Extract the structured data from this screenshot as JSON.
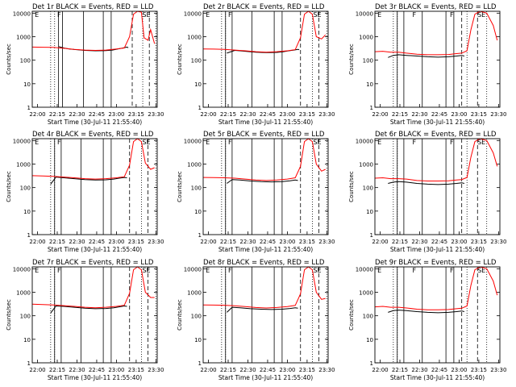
{
  "figure": {
    "panels": [
      {
        "title": "Det 1r BLACK = Events, RED = LLD",
        "xlabel": "Start Time (30-Jul-11 21:55:40)",
        "ylabel": "Counts/sec",
        "xtick_labels": [
          "22:00",
          "22:15",
          "22:30",
          "22:45",
          "23:00",
          "23:15",
          "23:30"
        ],
        "ytick_labels": [
          "1",
          "10",
          "100",
          "1000",
          "10000"
        ],
        "top_markers": [
          "E",
          "F",
          "SE"
        ]
      },
      {
        "title": "Det 2r BLACK = Events, RED = LLD",
        "xlabel": "Start Time (30-Jul-11 21:55:40)",
        "ylabel": "Counts/sec",
        "xtick_labels": [
          "22:00",
          "22:15",
          "22:30",
          "22:45",
          "23:00",
          "23:15",
          "23:30"
        ],
        "ytick_labels": [
          "1",
          "10",
          "100",
          "1000",
          "10000"
        ],
        "top_markers": [
          "E",
          "F",
          "SE"
        ]
      },
      {
        "title": "Det 3r BLACK = Events, RED = LLD",
        "xlabel": "Start Time (30-Jul-11 21:55:40)",
        "ylabel": "Counts/sec",
        "xtick_labels": [
          "22:00",
          "22:15",
          "22:30",
          "22:45",
          "23:00",
          "23:15",
          "23:30"
        ],
        "ytick_labels": [
          "1",
          "10",
          "100",
          "1000",
          "10000"
        ],
        "top_markers": [
          "E",
          "F",
          "F",
          "SE"
        ]
      },
      {
        "title": "Det 4r BLACK = Events, RED = LLD",
        "xlabel": "Start Time (30-Jul-11 21:55:40)",
        "ylabel": "Counts/sec",
        "xtick_labels": [
          "22:00",
          "22:15",
          "22:30",
          "22:45",
          "23:00",
          "23:15",
          "23:30"
        ],
        "ytick_labels": [
          "1",
          "10",
          "100",
          "1000",
          "10000"
        ],
        "top_markers": [
          "E",
          "F",
          "SE"
        ]
      },
      {
        "title": "Det 5r BLACK = Events, RED = LLD",
        "xlabel": "Start Time (30-Jul-11 21:55:40)",
        "ylabel": "Counts/sec",
        "xtick_labels": [
          "22:00",
          "22:15",
          "22:30",
          "22:45",
          "23:00",
          "23:15",
          "23:30"
        ],
        "ytick_labels": [
          "1",
          "10",
          "100",
          "1000",
          "10000"
        ],
        "top_markers": [
          "E",
          "F",
          "SE"
        ]
      },
      {
        "title": "Det 6r BLACK = Events, RED = LLD",
        "xlabel": "Start Time (30-Jul-11 21:55:40)",
        "ylabel": "Counts/sec",
        "xtick_labels": [
          "22:00",
          "22:15",
          "22:30",
          "22:45",
          "23:00",
          "23:15",
          "23:30"
        ],
        "ytick_labels": [
          "1",
          "10",
          "100",
          "1000",
          "10000"
        ],
        "top_markers": [
          "E",
          "F",
          "F",
          "SE"
        ]
      },
      {
        "title": "Det 7r BLACK = Events, RED = LLD",
        "xlabel": "Start Time (30-Jul-11 21:55:40)",
        "ylabel": "Counts/sec",
        "xtick_labels": [
          "22:00",
          "22:15",
          "22:30",
          "22:45",
          "23:00",
          "23:15",
          "23:30"
        ],
        "ytick_labels": [
          "1",
          "10",
          "100",
          "1000",
          "10000"
        ],
        "top_markers": [
          "E",
          "F",
          "SE"
        ]
      },
      {
        "title": "Det 8r BLACK = Events, RED = LLD",
        "xlabel": "Start Time (30-Jul-11 21:55:40)",
        "ylabel": "Counts/sec",
        "xtick_labels": [
          "22:00",
          "22:15",
          "22:30",
          "22:45",
          "23:00",
          "23:15",
          "23:30"
        ],
        "ytick_labels": [
          "1",
          "10",
          "100",
          "1000",
          "10000"
        ],
        "top_markers": [
          "E",
          "F",
          "SE"
        ]
      },
      {
        "title": "Det 9r BLACK = Events, RED = LLD",
        "xlabel": "Start Time (30-Jul-11 21:55:40)",
        "ylabel": "Counts/sec",
        "xtick_labels": [
          "22:00",
          "22:15",
          "22:30",
          "22:45",
          "23:00",
          "23:15",
          "23:30"
        ],
        "ytick_labels": [
          "1",
          "10",
          "100",
          "1000",
          "10000"
        ],
        "top_markers": [
          "E",
          "F",
          "F",
          "SE"
        ]
      }
    ]
  },
  "chart_data": [
    {
      "type": "line",
      "panel": "Det 1r",
      "x_minutes": [
        0,
        95
      ],
      "y_log_range": [
        1,
        12000
      ],
      "series": [
        {
          "name": "Events",
          "color": "#000000",
          "x": [
            20,
            24,
            28,
            32,
            40,
            48,
            56,
            61,
            65,
            69,
            72,
            73
          ],
          "y": [
            380,
            330,
            300,
            285,
            260,
            250,
            255,
            270,
            300,
            330,
            360,
            340
          ]
        },
        {
          "name": "LLD",
          "color": "#ff0000",
          "x": [
            0,
            8,
            16,
            24,
            32,
            40,
            48,
            56,
            64,
            70,
            74,
            77,
            80,
            83,
            85,
            88,
            90,
            93
          ],
          "y": [
            360,
            355,
            350,
            320,
            290,
            270,
            260,
            270,
            300,
            330,
            1000,
            9000,
            12000,
            11000,
            900,
            700,
            2000,
            500
          ]
        }
      ],
      "solid_lines": [
        20,
        23,
        39,
        54,
        60
      ],
      "dotted_lines": [
        14,
        17,
        84,
        94
      ],
      "dashed_lines": [
        76,
        89
      ]
    },
    {
      "type": "line",
      "panel": "Det 2r",
      "x_minutes": [
        0,
        95
      ],
      "y_log_range": [
        1,
        12000
      ],
      "series": [
        {
          "name": "Events",
          "color": "#000000",
          "x": [
            18,
            24,
            28,
            32,
            40,
            48,
            56,
            61,
            65,
            69,
            72,
            73
          ],
          "y": [
            200,
            260,
            250,
            240,
            220,
            210,
            215,
            230,
            250,
            270,
            290,
            280
          ]
        },
        {
          "name": "LLD",
          "color": "#ff0000",
          "x": [
            0,
            8,
            16,
            24,
            32,
            40,
            48,
            56,
            64,
            70,
            74,
            77,
            80,
            83,
            86,
            90,
            93
          ],
          "y": [
            300,
            295,
            290,
            270,
            250,
            230,
            220,
            230,
            250,
            280,
            900,
            9000,
            12000,
            9000,
            1000,
            800,
            1200
          ]
        }
      ],
      "solid_lines": [
        17,
        22,
        37,
        54,
        60
      ],
      "dotted_lines": [
        14,
        17,
        83,
        94
      ],
      "dashed_lines": [
        74,
        88
      ]
    },
    {
      "type": "line",
      "panel": "Det 3r",
      "x_minutes": [
        0,
        95
      ],
      "y_log_range": [
        1,
        12000
      ],
      "series": [
        {
          "name": "Events",
          "color": "#000000",
          "x": [
            10,
            14,
            18,
            24,
            32,
            40,
            48,
            56,
            62,
            66,
            68
          ],
          "y": [
            130,
            160,
            170,
            160,
            150,
            140,
            135,
            140,
            150,
            160,
            150
          ]
        },
        {
          "name": "LLD",
          "color": "#ff0000",
          "x": [
            0,
            6,
            12,
            18,
            24,
            32,
            40,
            48,
            56,
            62,
            66,
            70,
            73,
            76,
            80,
            85,
            90,
            93
          ],
          "y": [
            230,
            240,
            220,
            220,
            200,
            180,
            170,
            170,
            175,
            190,
            200,
            250,
            2000,
            9000,
            12000,
            10000,
            3000,
            700
          ]
        }
      ],
      "solid_lines": [
        17,
        22,
        36,
        54,
        60
      ],
      "dotted_lines": [
        14,
        17,
        70,
        85
      ],
      "dashed_lines": [
        66,
        78
      ]
    },
    {
      "type": "line",
      "panel": "Det 4r",
      "x_minutes": [
        0,
        95
      ],
      "y_log_range": [
        1,
        12000
      ],
      "series": [
        {
          "name": "Events",
          "color": "#000000",
          "x": [
            14,
            18,
            24,
            32,
            40,
            48,
            56,
            62,
            66,
            70,
            72
          ],
          "y": [
            140,
            280,
            260,
            240,
            220,
            210,
            215,
            230,
            250,
            270,
            260
          ]
        },
        {
          "name": "LLD",
          "color": "#ff0000",
          "x": [
            0,
            8,
            16,
            24,
            32,
            40,
            48,
            56,
            64,
            70,
            74,
            77,
            80,
            83,
            86,
            90,
            93
          ],
          "y": [
            320,
            310,
            300,
            280,
            260,
            240,
            230,
            240,
            260,
            290,
            900,
            9000,
            12000,
            9000,
            1100,
            600,
            700
          ]
        }
      ],
      "solid_lines": [
        17,
        22,
        37,
        54,
        60
      ],
      "dotted_lines": [
        14,
        17,
        83,
        94
      ],
      "dashed_lines": [
        74,
        88
      ]
    },
    {
      "type": "line",
      "panel": "Det 5r",
      "x_minutes": [
        0,
        95
      ],
      "y_log_range": [
        1,
        12000
      ],
      "series": [
        {
          "name": "Events",
          "color": "#000000",
          "x": [
            18,
            22,
            28,
            36,
            44,
            52,
            60,
            66,
            70,
            72
          ],
          "y": [
            150,
            220,
            210,
            190,
            180,
            175,
            180,
            195,
            210,
            200
          ]
        },
        {
          "name": "LLD",
          "color": "#ff0000",
          "x": [
            0,
            8,
            16,
            24,
            32,
            40,
            48,
            56,
            64,
            70,
            74,
            77,
            80,
            83,
            86,
            90,
            93
          ],
          "y": [
            270,
            265,
            260,
            250,
            230,
            210,
            200,
            210,
            230,
            260,
            800,
            9000,
            12000,
            9000,
            1000,
            500,
            600
          ]
        }
      ],
      "solid_lines": [
        17,
        22,
        37,
        54,
        60
      ],
      "dotted_lines": [
        14,
        17,
        83,
        94
      ],
      "dashed_lines": [
        74,
        88
      ]
    },
    {
      "type": "line",
      "panel": "Det 6r",
      "x_minutes": [
        0,
        95
      ],
      "y_log_range": [
        1,
        12000
      ],
      "series": [
        {
          "name": "Events",
          "color": "#000000",
          "x": [
            10,
            14,
            18,
            24,
            32,
            40,
            48,
            56,
            62,
            66,
            68
          ],
          "y": [
            150,
            170,
            180,
            170,
            150,
            140,
            135,
            140,
            150,
            160,
            150
          ]
        },
        {
          "name": "LLD",
          "color": "#ff0000",
          "x": [
            0,
            6,
            12,
            18,
            24,
            32,
            40,
            48,
            56,
            62,
            66,
            70,
            73,
            76,
            80,
            85,
            90,
            93
          ],
          "y": [
            250,
            260,
            240,
            240,
            230,
            200,
            190,
            190,
            195,
            210,
            220,
            270,
            2000,
            9000,
            12000,
            10000,
            3000,
            800
          ]
        }
      ],
      "solid_lines": [
        17,
        22,
        36,
        54,
        60
      ],
      "dotted_lines": [
        14,
        17,
        70,
        85
      ],
      "dashed_lines": [
        66,
        78
      ]
    },
    {
      "type": "line",
      "panel": "Det 7r",
      "x_minutes": [
        0,
        95
      ],
      "y_log_range": [
        1,
        12000
      ],
      "series": [
        {
          "name": "Events",
          "color": "#000000",
          "x": [
            14,
            18,
            24,
            32,
            40,
            48,
            56,
            62,
            66,
            70,
            72
          ],
          "y": [
            130,
            260,
            250,
            230,
            210,
            200,
            205,
            220,
            240,
            260,
            250
          ]
        },
        {
          "name": "LLD",
          "color": "#ff0000",
          "x": [
            0,
            8,
            16,
            24,
            32,
            40,
            48,
            56,
            64,
            70,
            74,
            77,
            80,
            83,
            86,
            90,
            93
          ],
          "y": [
            310,
            300,
            290,
            270,
            250,
            230,
            220,
            230,
            250,
            280,
            900,
            9000,
            12000,
            9000,
            1000,
            600,
            600
          ]
        }
      ],
      "solid_lines": [
        17,
        22,
        37,
        54,
        60
      ],
      "dotted_lines": [
        14,
        17,
        83,
        94
      ],
      "dashed_lines": [
        74,
        88
      ]
    },
    {
      "type": "line",
      "panel": "Det 8r",
      "x_minutes": [
        0,
        95
      ],
      "y_log_range": [
        1,
        12000
      ],
      "series": [
        {
          "name": "Events",
          "color": "#000000",
          "x": [
            18,
            22,
            28,
            36,
            44,
            52,
            60,
            66,
            70,
            72
          ],
          "y": [
            140,
            230,
            220,
            200,
            190,
            185,
            190,
            205,
            220,
            210
          ]
        },
        {
          "name": "LLD",
          "color": "#ff0000",
          "x": [
            0,
            8,
            16,
            24,
            32,
            40,
            48,
            56,
            64,
            70,
            74,
            77,
            80,
            83,
            86,
            90,
            93
          ],
          "y": [
            290,
            285,
            280,
            265,
            245,
            225,
            215,
            225,
            245,
            275,
            850,
            9000,
            12000,
            9000,
            1000,
            500,
            550
          ]
        }
      ],
      "solid_lines": [
        17,
        22,
        37,
        54,
        60
      ],
      "dotted_lines": [
        14,
        17,
        83,
        94
      ],
      "dashed_lines": [
        74,
        88
      ]
    },
    {
      "type": "line",
      "panel": "Det 9r",
      "x_minutes": [
        0,
        95
      ],
      "y_log_range": [
        1,
        12000
      ],
      "series": [
        {
          "name": "Events",
          "color": "#000000",
          "x": [
            10,
            14,
            18,
            24,
            32,
            40,
            48,
            56,
            62,
            66,
            68
          ],
          "y": [
            140,
            165,
            175,
            165,
            150,
            140,
            135,
            140,
            150,
            160,
            150
          ]
        },
        {
          "name": "LLD",
          "color": "#ff0000",
          "x": [
            0,
            6,
            12,
            18,
            24,
            32,
            40,
            48,
            56,
            62,
            66,
            70,
            73,
            76,
            80,
            85,
            90,
            93
          ],
          "y": [
            240,
            250,
            230,
            230,
            215,
            190,
            180,
            180,
            185,
            200,
            210,
            260,
            2000,
            9000,
            12000,
            10000,
            3000,
            750
          ]
        }
      ],
      "solid_lines": [
        17,
        22,
        36,
        54,
        60
      ],
      "dotted_lines": [
        14,
        17,
        70,
        85
      ],
      "dashed_lines": [
        66,
        78
      ]
    }
  ]
}
